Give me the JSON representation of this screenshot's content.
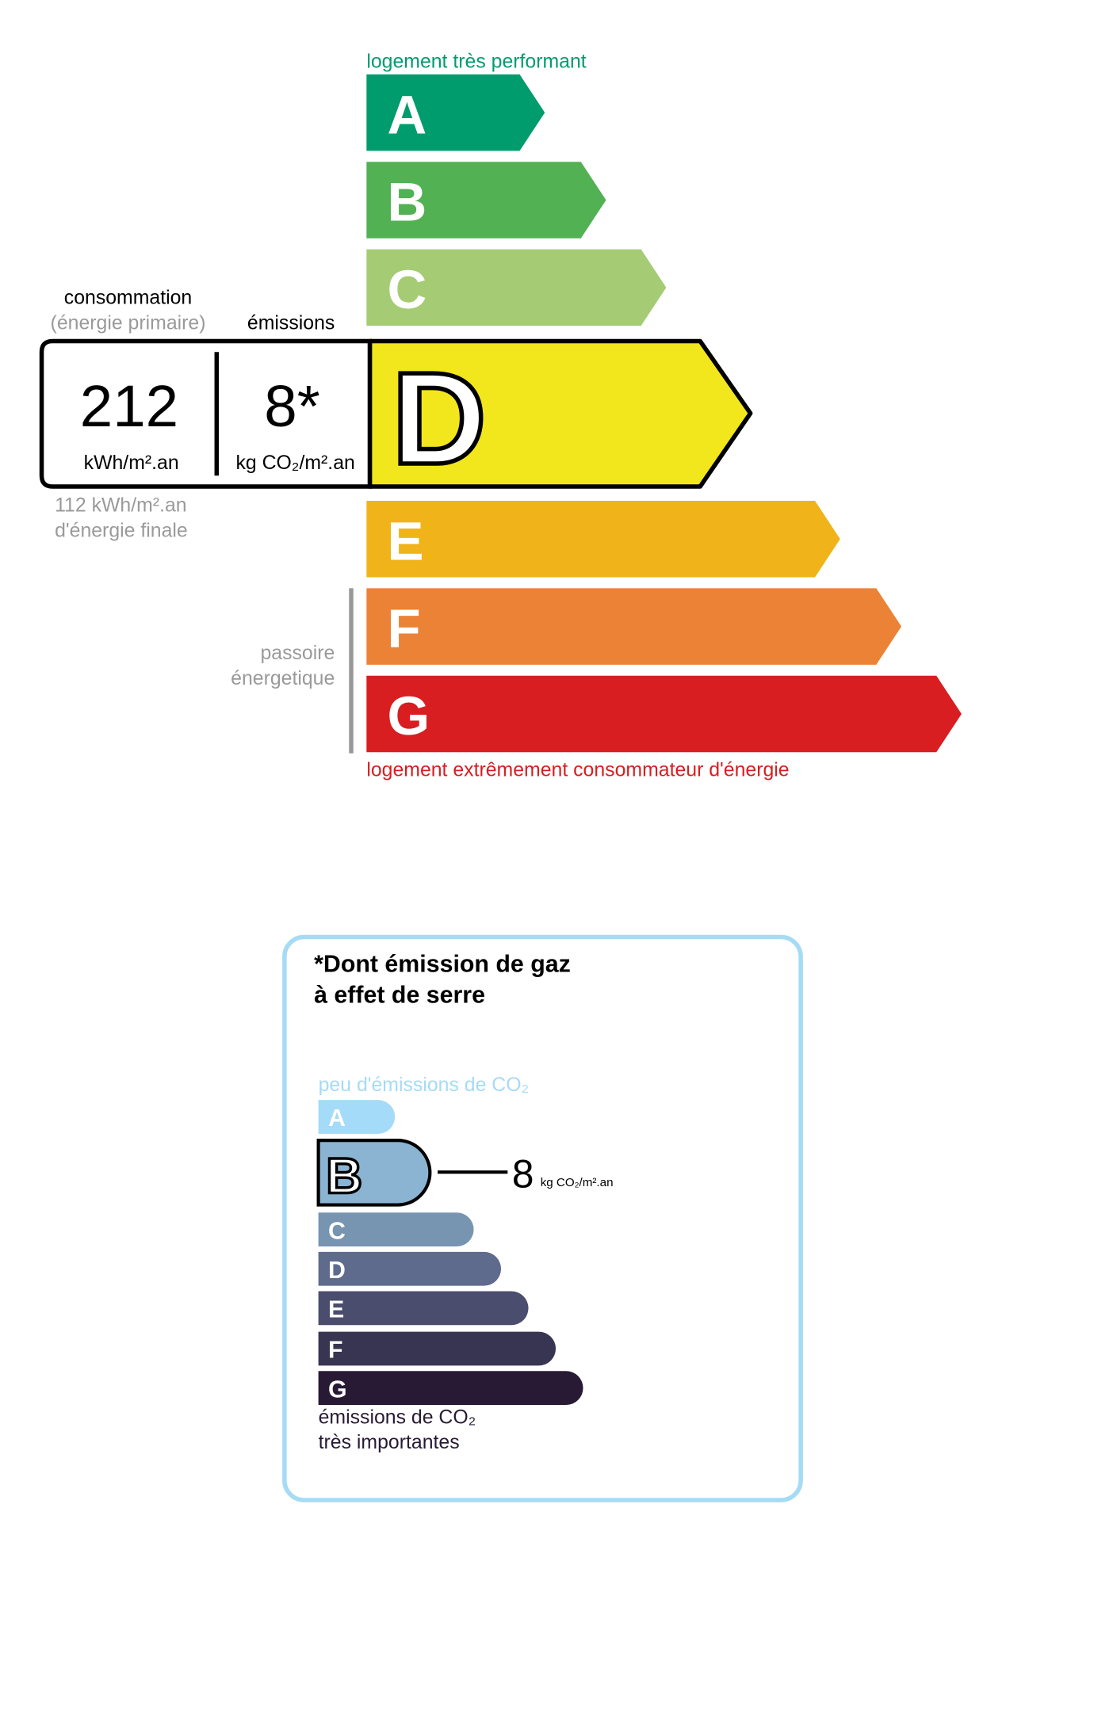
{
  "energy": {
    "top_label": "logement très performant",
    "bottom_label": "logement extrêmement consommateur d'énergie",
    "top_color": "#009c6d",
    "bottom_color": "#d81e20",
    "classes": [
      {
        "letter": "A",
        "color": "#009c6d"
      },
      {
        "letter": "B",
        "color": "#52b153"
      },
      {
        "letter": "C",
        "color": "#a5cc74"
      },
      {
        "letter": "D",
        "color": "#f2e61c"
      },
      {
        "letter": "E",
        "color": "#f0b41a"
      },
      {
        "letter": "F",
        "color": "#eb8235"
      },
      {
        "letter": "G",
        "color": "#d81e20"
      }
    ],
    "current_class": "D",
    "consumption_header": "consommation",
    "consumption_subheader": "(énergie primaire)",
    "emissions_header": "émissions",
    "consumption_value": "212",
    "consumption_unit": "kWh/m².an",
    "emissions_value": "8*",
    "emissions_unit": "kg CO₂/m².an",
    "final_energy_line1": "112 kWh/m².an",
    "final_energy_line2": "d'énergie finale",
    "passoire_line1": "passoire",
    "passoire_line2": "énergetique"
  },
  "ges": {
    "title_line1": "*Dont émission de gaz",
    "title_line2": "à effet de serre",
    "top_label": "peu d'émissions de CO₂",
    "bottom_line1": "émissions de CO₂",
    "bottom_line2": "très importantes",
    "border_color": "#a5dbf5",
    "classes": [
      {
        "letter": "A",
        "color": "#a4dbf8"
      },
      {
        "letter": "B",
        "color": "#8bb4d3"
      },
      {
        "letter": "C",
        "color": "#7794b1"
      },
      {
        "letter": "D",
        "color": "#5e6b8d"
      },
      {
        "letter": "E",
        "color": "#4a4d6e"
      },
      {
        "letter": "F",
        "color": "#383552"
      },
      {
        "letter": "G",
        "color": "#281a34"
      }
    ],
    "current_class": "B",
    "value": "8",
    "unit": "kg CO₂/m².an"
  }
}
